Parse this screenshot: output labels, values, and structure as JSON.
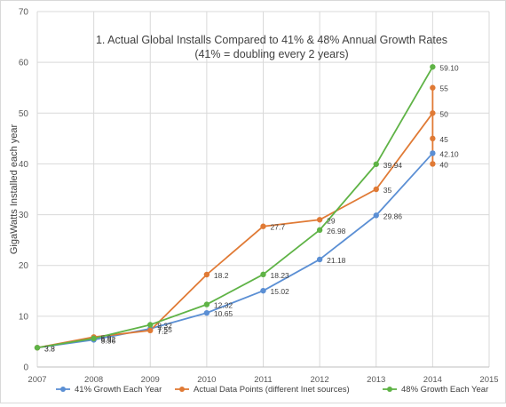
{
  "chart_data": {
    "type": "line",
    "title_lines": [
      "1. Actual Global Installs Compared to 41% & 48% Annual Growth Rates",
      "(41% = doubling every 2 years)"
    ],
    "ylabel": "GigaWatts Installed each year",
    "xlabel": "",
    "xlim": [
      2007,
      2015
    ],
    "ylim": [
      0,
      70
    ],
    "x_ticks": [
      "2007",
      "2008",
      "2009",
      "2010",
      "2011",
      "2012",
      "2013",
      "2014",
      "2015"
    ],
    "y_ticks": [
      "0",
      "10",
      "20",
      "30",
      "40",
      "50",
      "60",
      "70"
    ],
    "grid": "both",
    "legend_position": "bottom",
    "series": [
      {
        "name": "41% Growth Each Year",
        "color": "#5b8fd4",
        "points": [
          {
            "x": 2007,
            "y": 3.8,
            "label": "3.8"
          },
          {
            "x": 2008,
            "y": 5.36,
            "label": "5.36"
          },
          {
            "x": 2009,
            "y": 7.55,
            "label": "7.55"
          },
          {
            "x": 2010,
            "y": 10.65,
            "label": "10.65"
          },
          {
            "x": 2011,
            "y": 15.02,
            "label": "15.02"
          },
          {
            "x": 2012,
            "y": 21.18,
            "label": "21.18"
          },
          {
            "x": 2013,
            "y": 29.86,
            "label": "29.86"
          },
          {
            "x": 2014,
            "y": 42.1,
            "label": "42.10"
          }
        ]
      },
      {
        "name": "Actual Data Points (different Inet sources)",
        "color": "#e07a35",
        "points": [
          {
            "x": 2007,
            "y": 3.8,
            "label": "3.8"
          },
          {
            "x": 2008,
            "y": 5.9,
            "label": "5.9"
          },
          {
            "x": 2009,
            "y": 7.2,
            "label": "7.2"
          },
          {
            "x": 2010,
            "y": 18.2,
            "label": "18.2"
          },
          {
            "x": 2011,
            "y": 27.7,
            "label": "27.7"
          },
          {
            "x": 2012,
            "y": 29,
            "label": "29"
          },
          {
            "x": 2013,
            "y": 35,
            "label": "35"
          },
          {
            "x": 2014,
            "y": 50,
            "label": "50"
          }
        ],
        "extra_points": [
          {
            "x": 2014,
            "y": 55,
            "label": "55"
          },
          {
            "x": 2014,
            "y": 45,
            "label": "45"
          },
          {
            "x": 2014,
            "y": 40,
            "label": "40"
          }
        ]
      },
      {
        "name": "48% Growth Each Year",
        "color": "#5fb346",
        "points": [
          {
            "x": 2007,
            "y": 3.8,
            "label": ""
          },
          {
            "x": 2008,
            "y": 5.62,
            "label": "5.62"
          },
          {
            "x": 2009,
            "y": 8.32,
            "label": "8.32"
          },
          {
            "x": 2010,
            "y": 12.32,
            "label": "12.32"
          },
          {
            "x": 2011,
            "y": 18.23,
            "label": "18.23"
          },
          {
            "x": 2012,
            "y": 26.98,
            "label": "26.98"
          },
          {
            "x": 2013,
            "y": 39.94,
            "label": "39.94"
          },
          {
            "x": 2014,
            "y": 59.1,
            "label": "59.10"
          }
        ]
      }
    ]
  }
}
